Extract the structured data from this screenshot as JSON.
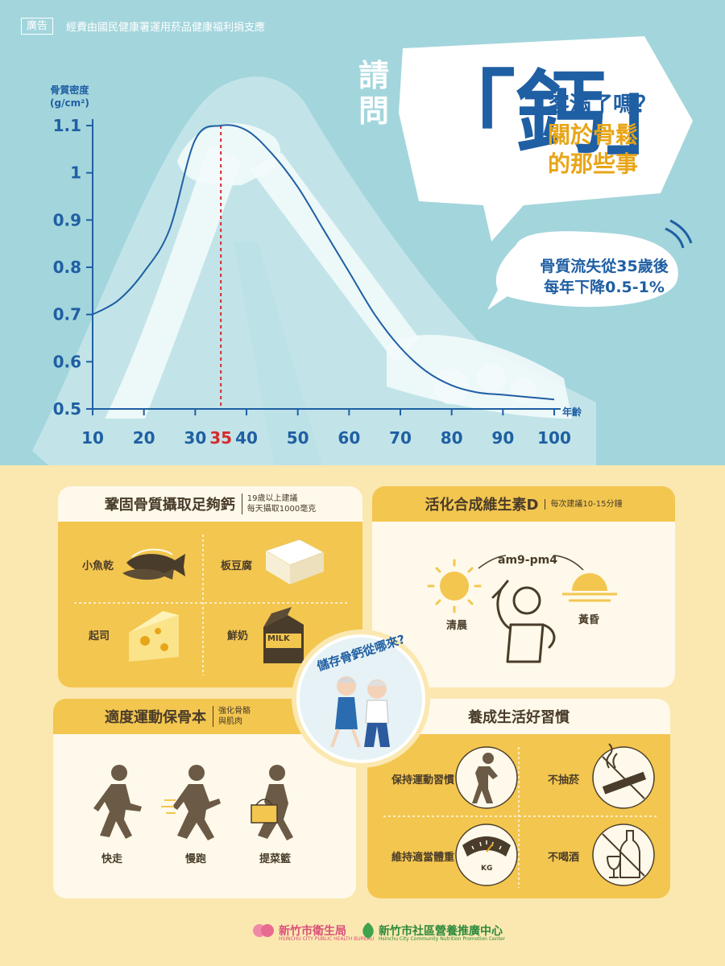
{
  "header": {
    "ad_tag": "廣告",
    "ad_note": "經費由國民健康署運用菸品健康福利捐支應"
  },
  "headline": {
    "small": "請問",
    "big": "「鈣」",
    "line1": "客滿了嗎？",
    "line2": "關於骨鬆",
    "line3": "的那些事"
  },
  "loss_bubble": {
    "line1": "骨質流失從35歲後",
    "line2": "每年下降0.5-1%"
  },
  "chart_data": {
    "type": "line",
    "ylabel_line1": "骨質密度",
    "ylabel_line2": "(g/cm²)",
    "xlabel": "年齡",
    "ylim": [
      0.5,
      1.1
    ],
    "xlim": [
      10,
      100
    ],
    "yticks": [
      "0.5",
      "0.6",
      "0.7",
      "0.8",
      "0.9",
      "1",
      "1.1"
    ],
    "xticks": [
      "10",
      "20",
      "30",
      "35",
      "40",
      "50",
      "60",
      "70",
      "80",
      "90",
      "100"
    ],
    "highlight_x": "35",
    "series": [
      {
        "x": [
          10,
          15,
          20,
          25,
          30,
          35,
          40,
          45,
          50,
          55,
          60,
          65,
          70,
          75,
          80,
          85,
          90,
          95,
          100
        ],
        "y": [
          0.7,
          0.73,
          0.79,
          0.88,
          1.07,
          1.1,
          1.09,
          1.04,
          0.97,
          0.88,
          0.79,
          0.7,
          0.63,
          0.58,
          0.55,
          0.535,
          0.53,
          0.525,
          0.52
        ]
      }
    ],
    "line_color": "#1f5fa3",
    "highlight_color": "#d62b2b"
  },
  "badge": {
    "text": "儲存骨鈣從哪來?"
  },
  "calcium": {
    "title": "鞏固骨質攝取足夠鈣",
    "sub1": "19歲以上建議",
    "sub2": "每天攝取1000毫克",
    "items": [
      "小魚乾",
      "板豆腐",
      "起司",
      "鮮奶"
    ],
    "milk_text": "MILK"
  },
  "vitd": {
    "title": "活化合成維生素D",
    "sub": "每次建議10-15分鐘",
    "time": "am9-pm4",
    "morning": "清晨",
    "dusk": "黃昏"
  },
  "exercise": {
    "title": "適度運動保骨本",
    "sub1": "強化骨骼",
    "sub2": "與肌肉",
    "items": [
      "快走",
      "慢跑",
      "提菜籃"
    ]
  },
  "habits": {
    "title": "養成生活好習慣",
    "items": [
      "保持運動習慣",
      "不抽菸",
      "維持適當體重",
      "不喝酒"
    ],
    "scale_text": "KG"
  },
  "footer": {
    "org1": "新竹市衛生局",
    "org1_en": "HSINCHU CITY PUBLIC HEALTH BUREAU",
    "org2": "新竹市社區營養推廣中心",
    "org2_en": "Hsinchu City Community Nutrition Promotion Center"
  },
  "colors": {
    "sky": "#a3d5dc",
    "cream": "#fbe8b0",
    "mustard": "#f3c64f",
    "brown": "#4a3c2a",
    "blue": "#1f5fa3",
    "orange": "#e8a517"
  }
}
